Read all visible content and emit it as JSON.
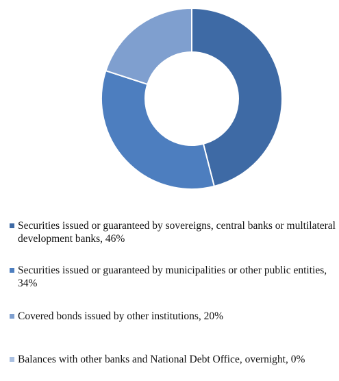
{
  "chart_data": {
    "type": "pie",
    "subtype": "donut",
    "slices": [
      {
        "label": "Securities issued or guaranteed by sovereigns, central banks or multilateral development banks, 46%",
        "value": 46,
        "color": "#3e6aa5"
      },
      {
        "label": "Securities issued or guaranteed by municipalities or other public entities, 34%",
        "value": 34,
        "color": "#4d7ebf"
      },
      {
        "label": "Covered bonds issued by other institutions, 20%",
        "value": 20,
        "color": "#7f9fcf"
      },
      {
        "label": "Balances with other banks and National Debt Office, overnight, 0%",
        "value": 0,
        "color": "#a9bfe0"
      }
    ],
    "legend_position": "bottom"
  }
}
